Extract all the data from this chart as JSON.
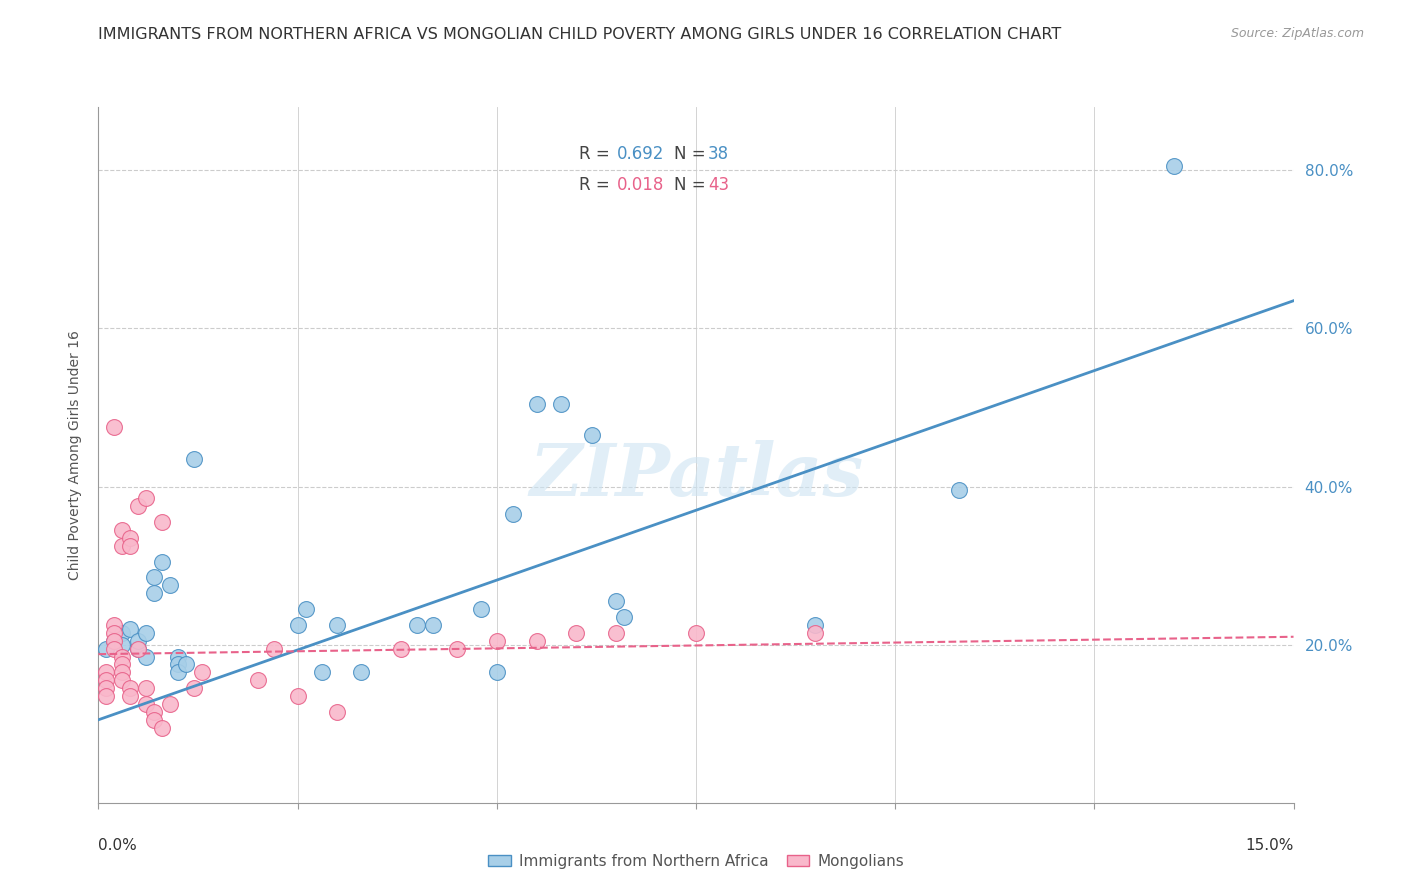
{
  "title": "IMMIGRANTS FROM NORTHERN AFRICA VS MONGOLIAN CHILD POVERTY AMONG GIRLS UNDER 16 CORRELATION CHART",
  "source": "Source: ZipAtlas.com",
  "ylabel": "Child Poverty Among Girls Under 16",
  "xlim": [
    0.0,
    0.15
  ],
  "ylim": [
    0.0,
    0.88
  ],
  "blue_color": "#a8cfe8",
  "pink_color": "#f9b8cb",
  "line_blue": "#4a90c4",
  "line_pink": "#e8628a",
  "watermark": "ZIPatlas",
  "blue_scatter": [
    [
      0.001,
      0.195
    ],
    [
      0.002,
      0.205
    ],
    [
      0.003,
      0.215
    ],
    [
      0.003,
      0.2
    ],
    [
      0.004,
      0.22
    ],
    [
      0.005,
      0.195
    ],
    [
      0.005,
      0.205
    ],
    [
      0.006,
      0.185
    ],
    [
      0.006,
      0.215
    ],
    [
      0.007,
      0.265
    ],
    [
      0.007,
      0.285
    ],
    [
      0.008,
      0.305
    ],
    [
      0.009,
      0.275
    ],
    [
      0.01,
      0.185
    ],
    [
      0.01,
      0.175
    ],
    [
      0.01,
      0.165
    ],
    [
      0.011,
      0.175
    ],
    [
      0.012,
      0.435
    ],
    [
      0.025,
      0.225
    ],
    [
      0.026,
      0.245
    ],
    [
      0.028,
      0.165
    ],
    [
      0.03,
      0.225
    ],
    [
      0.033,
      0.165
    ],
    [
      0.04,
      0.225
    ],
    [
      0.042,
      0.225
    ],
    [
      0.048,
      0.245
    ],
    [
      0.05,
      0.165
    ],
    [
      0.052,
      0.365
    ],
    [
      0.055,
      0.505
    ],
    [
      0.058,
      0.505
    ],
    [
      0.062,
      0.465
    ],
    [
      0.065,
      0.255
    ],
    [
      0.066,
      0.235
    ],
    [
      0.09,
      0.225
    ],
    [
      0.108,
      0.395
    ],
    [
      0.135,
      0.805
    ]
  ],
  "pink_scatter": [
    [
      0.001,
      0.165
    ],
    [
      0.001,
      0.155
    ],
    [
      0.001,
      0.145
    ],
    [
      0.001,
      0.135
    ],
    [
      0.002,
      0.475
    ],
    [
      0.002,
      0.225
    ],
    [
      0.002,
      0.215
    ],
    [
      0.002,
      0.205
    ],
    [
      0.002,
      0.195
    ],
    [
      0.003,
      0.345
    ],
    [
      0.003,
      0.325
    ],
    [
      0.003,
      0.185
    ],
    [
      0.003,
      0.175
    ],
    [
      0.003,
      0.165
    ],
    [
      0.003,
      0.155
    ],
    [
      0.004,
      0.335
    ],
    [
      0.004,
      0.325
    ],
    [
      0.004,
      0.145
    ],
    [
      0.004,
      0.135
    ],
    [
      0.005,
      0.375
    ],
    [
      0.005,
      0.195
    ],
    [
      0.006,
      0.385
    ],
    [
      0.006,
      0.145
    ],
    [
      0.006,
      0.125
    ],
    [
      0.007,
      0.115
    ],
    [
      0.007,
      0.105
    ],
    [
      0.008,
      0.355
    ],
    [
      0.008,
      0.095
    ],
    [
      0.009,
      0.125
    ],
    [
      0.012,
      0.145
    ],
    [
      0.013,
      0.165
    ],
    [
      0.02,
      0.155
    ],
    [
      0.022,
      0.195
    ],
    [
      0.025,
      0.135
    ],
    [
      0.03,
      0.115
    ],
    [
      0.038,
      0.195
    ],
    [
      0.045,
      0.195
    ],
    [
      0.05,
      0.205
    ],
    [
      0.055,
      0.205
    ],
    [
      0.06,
      0.215
    ],
    [
      0.065,
      0.215
    ],
    [
      0.075,
      0.215
    ],
    [
      0.09,
      0.215
    ]
  ],
  "blue_line_x": [
    0.0,
    0.15
  ],
  "blue_line_y": [
    0.105,
    0.635
  ],
  "pink_line_x": [
    0.0,
    0.15
  ],
  "pink_line_y": [
    0.188,
    0.21
  ],
  "grid_yticks": [
    0.2,
    0.4,
    0.6,
    0.8
  ],
  "grid_xticks": [
    0.025,
    0.05,
    0.075,
    0.1,
    0.125
  ],
  "right_ytick_labels": [
    "20.0%",
    "40.0%",
    "60.0%",
    "80.0%"
  ],
  "grid_color": "#cccccc",
  "title_fontsize": 11.5,
  "axis_label_fontsize": 10,
  "tick_fontsize": 11
}
